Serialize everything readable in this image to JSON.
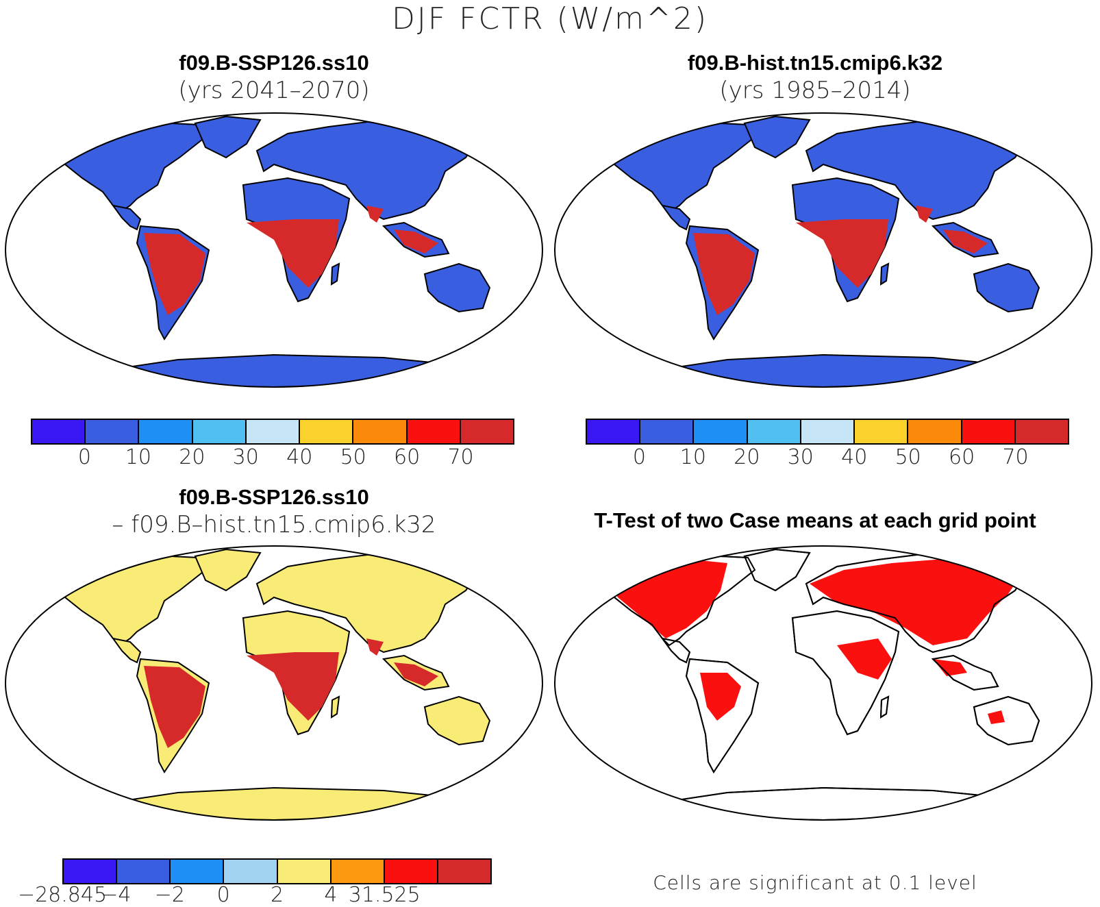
{
  "figure_title": "DJF FCTR (W/m^2)",
  "panels": [
    {
      "id": "future",
      "title": "f09.B-SSP126.ss10",
      "subtitle": "(yrs 2041–2070)"
    },
    {
      "id": "historical",
      "title": "f09.B-hist.tn15.cmip6.k32",
      "subtitle": "(yrs 1985–2014)"
    },
    {
      "id": "difference",
      "title": "f09.B-SSP126.ss10",
      "subtitle": "– f09.B–hist.tn15.cmip6.k32"
    },
    {
      "id": "ttest",
      "title": "T-Test of two Case means at each grid point",
      "footnote": "Cells are significant at 0.1 level"
    }
  ],
  "colorbars": {
    "absolute": {
      "colors": [
        "#3a18f4",
        "#3a5ee0",
        "#1e8ff5",
        "#52bff3",
        "#c6e6f7",
        "#fbd12c",
        "#fb8a0a",
        "#fb1010",
        "#d62a2a"
      ],
      "labels": [
        "0",
        "10",
        "20",
        "30",
        "40",
        "50",
        "60",
        "70"
      ]
    },
    "difference": {
      "colors": [
        "#3a18f4",
        "#3a5ee0",
        "#1e8ff5",
        "#9fd3f1",
        "#f8ec76",
        "#fb9a0e",
        "#fb1010",
        "#d62a2a"
      ],
      "labels": [
        "−28.845",
        "−4",
        "−2",
        "0",
        "2",
        "4",
        "31.525"
      ]
    }
  },
  "map_fills": {
    "future": {
      "north": "#3a5ee0",
      "tropics": "#d62a2a",
      "antarctica": "#3a5ee0"
    },
    "historical": {
      "north": "#3a5ee0",
      "tropics": "#d62a2a",
      "antarctica": "#3a5ee0"
    },
    "difference": {
      "north": "#f8ec76",
      "tropics": "#d62a2a",
      "antarctica": "#f8ec76"
    },
    "ttest": {
      "significant": "#fb1010"
    }
  }
}
